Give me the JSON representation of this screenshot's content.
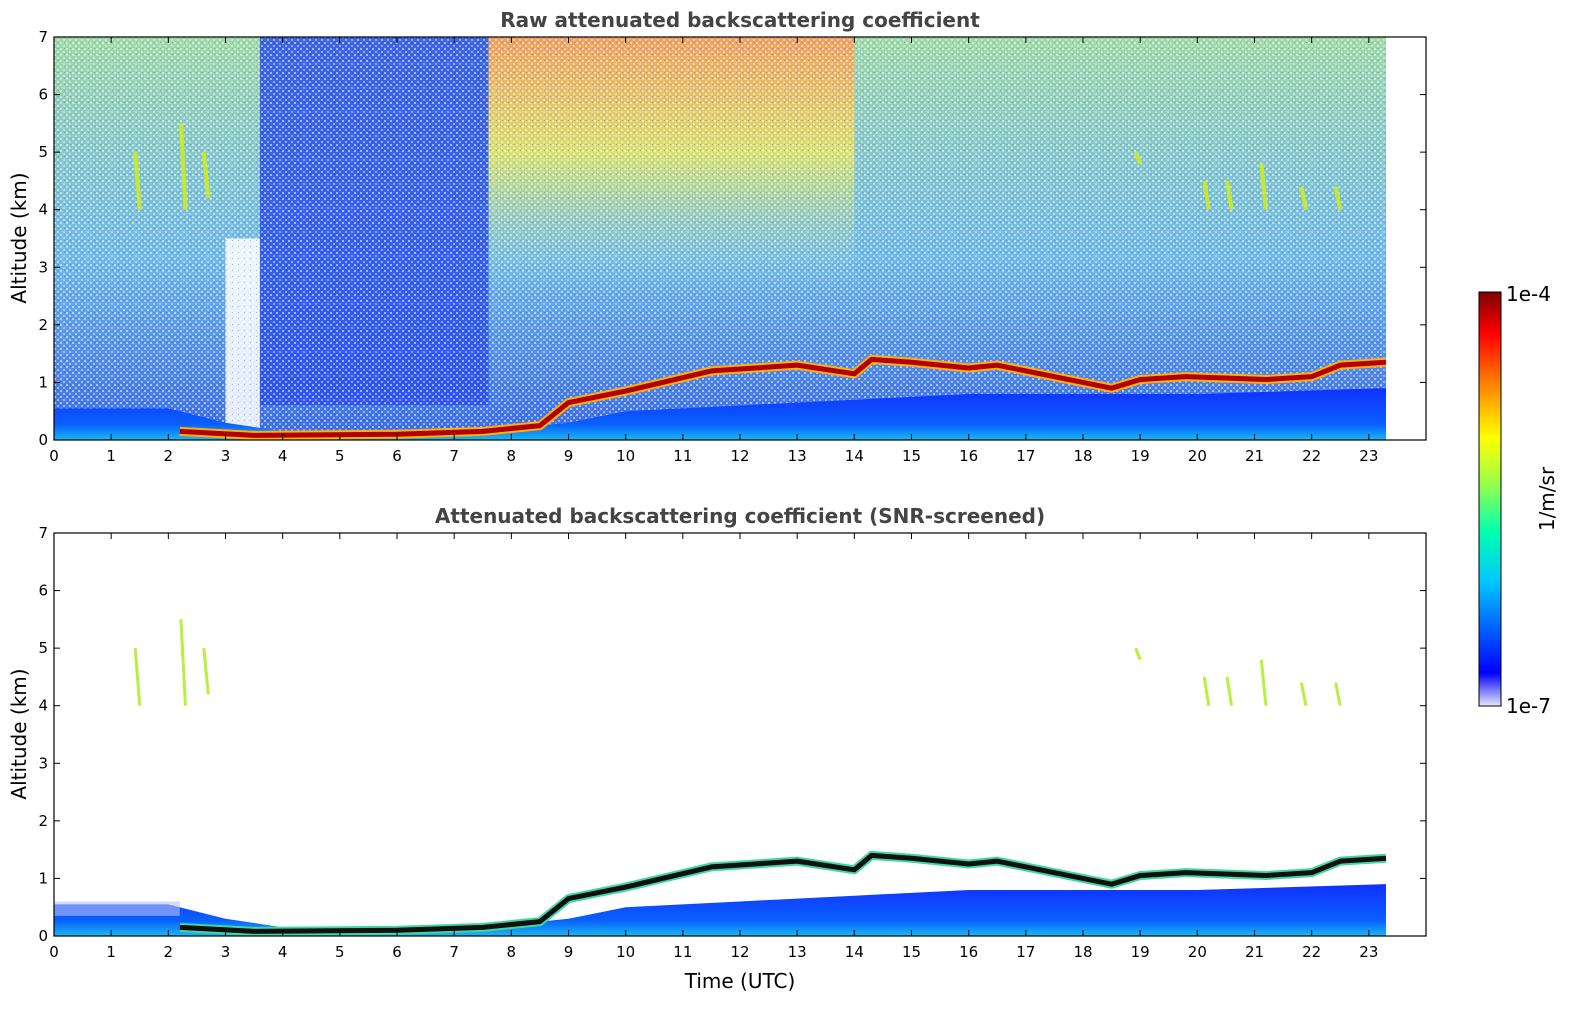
{
  "chart_data": [
    {
      "type": "heatmap",
      "title": "Raw attenuated backscattering coefficient",
      "xlabel": "",
      "ylabel": "Altitude (km)",
      "xlim": [
        0,
        24
      ],
      "ylim": [
        0,
        7
      ],
      "x_ticks": [
        "0",
        "1",
        "2",
        "3",
        "4",
        "5",
        "6",
        "7",
        "8",
        "9",
        "10",
        "11",
        "12",
        "13",
        "14",
        "15",
        "16",
        "17",
        "18",
        "19",
        "20",
        "21",
        "22",
        "23"
      ],
      "y_ticks": [
        "0",
        "1",
        "2",
        "3",
        "4",
        "5",
        "6",
        "7"
      ],
      "data_end_hour": 23.3,
      "features": {
        "boundary_layer": [
          [
            0,
            0.55
          ],
          [
            2,
            0.55
          ],
          [
            3,
            0.3
          ],
          [
            4,
            0.15
          ],
          [
            7.5,
            0.15
          ],
          [
            9,
            0.3
          ],
          [
            10,
            0.5
          ],
          [
            12,
            0.6
          ],
          [
            14,
            0.7
          ],
          [
            16,
            0.8
          ],
          [
            18,
            0.8
          ],
          [
            20,
            0.8
          ],
          [
            23.3,
            0.9
          ]
        ],
        "cloud_layer": [
          [
            2.2,
            0.15
          ],
          [
            3.5,
            0.08
          ],
          [
            6,
            0.1
          ],
          [
            7.5,
            0.15
          ],
          [
            8.5,
            0.25
          ],
          [
            9,
            0.65
          ],
          [
            10,
            0.85
          ],
          [
            11.5,
            1.2
          ],
          [
            13,
            1.3
          ],
          [
            14,
            1.15
          ],
          [
            14.3,
            1.4
          ],
          [
            15,
            1.35
          ],
          [
            16,
            1.25
          ],
          [
            16.5,
            1.3
          ],
          [
            18.5,
            0.9
          ],
          [
            19,
            1.05
          ],
          [
            19.8,
            1.1
          ],
          [
            21.2,
            1.05
          ],
          [
            22,
            1.1
          ],
          [
            22.5,
            1.3
          ],
          [
            23.3,
            1.35
          ]
        ],
        "cirrus_streaks": [
          [
            1.5,
            4.0,
            5.0
          ],
          [
            2.3,
            4.0,
            5.5
          ],
          [
            2.7,
            4.2,
            5.0
          ],
          [
            19.0,
            4.8,
            5.0
          ],
          [
            20.2,
            4.0,
            4.5
          ],
          [
            20.6,
            4.0,
            4.5
          ],
          [
            21.2,
            4.0,
            4.8
          ],
          [
            21.9,
            4.0,
            4.4
          ],
          [
            22.5,
            4.0,
            4.4
          ]
        ]
      }
    },
    {
      "type": "heatmap",
      "title": "Attenuated backscattering coefficient (SNR-screened)",
      "xlabel": "Time (UTC)",
      "ylabel": "Altitude (km)",
      "xlim": [
        0,
        24
      ],
      "ylim": [
        0,
        7
      ],
      "x_ticks": [
        "0",
        "1",
        "2",
        "3",
        "4",
        "5",
        "6",
        "7",
        "8",
        "9",
        "10",
        "11",
        "12",
        "13",
        "14",
        "15",
        "16",
        "17",
        "18",
        "19",
        "20",
        "21",
        "22",
        "23"
      ],
      "y_ticks": [
        "0",
        "1",
        "2",
        "3",
        "4",
        "5",
        "6",
        "7"
      ]
    }
  ],
  "colorbar": {
    "max_label": "1e-4",
    "min_label": "1e-7",
    "unit_label": "1/m/sr",
    "stops": [
      "#e8e8f8",
      "#0000ff",
      "#00c8ff",
      "#00ffb0",
      "#a8ff40",
      "#ffff00",
      "#ff8000",
      "#ff0000",
      "#800000"
    ]
  }
}
